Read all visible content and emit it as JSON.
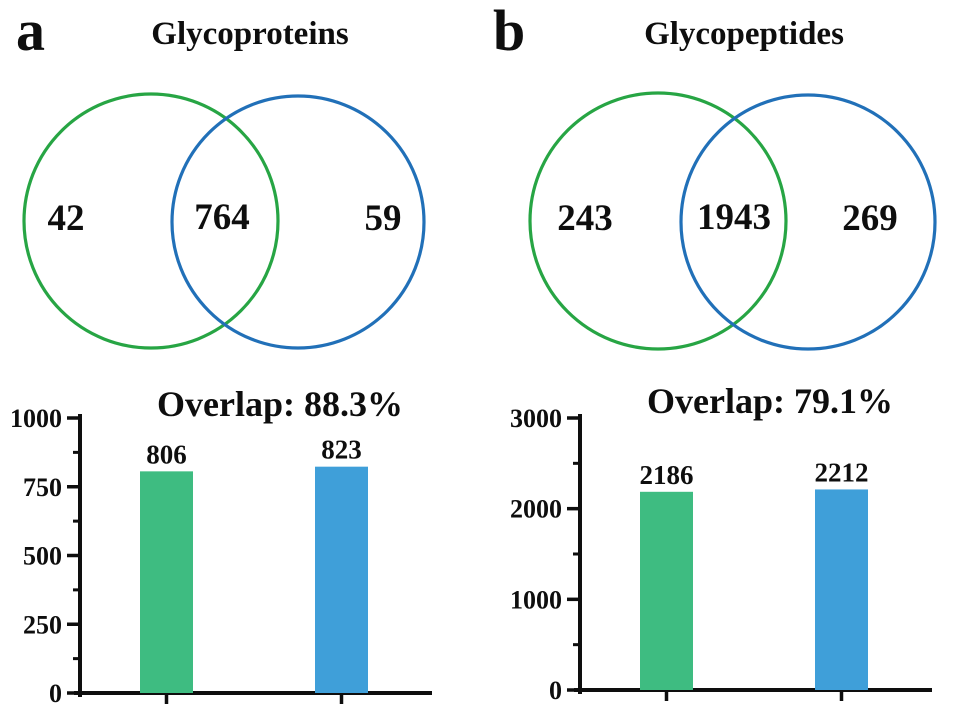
{
  "figure": {
    "background": "#ffffff",
    "text_color": "#0e0e0e"
  },
  "colors": {
    "axis": "#0e0e0e",
    "venn_left_stroke": "#27a544",
    "venn_right_stroke": "#2170b8",
    "bar_green": "#3ebc81",
    "bar_blue": "#3f9fd9"
  },
  "chart_data": [
    {
      "type": "venn+bar",
      "panel_label": "a",
      "venn_title": "Glycoproteins",
      "venn": {
        "left_only": "42",
        "overlap": "764",
        "right_only": "59",
        "left_circle_color": "#27a544",
        "right_circle_color": "#2170b8"
      },
      "bar": {
        "type": "bar",
        "title": "Overlap: 88.3%",
        "categories": [
          "green",
          "blue"
        ],
        "values": [
          806,
          823
        ],
        "value_labels": [
          "806",
          "823"
        ],
        "colors": [
          "#3ebc81",
          "#3f9fd9"
        ],
        "ylim": [
          0,
          1000
        ],
        "yticks": [
          0,
          250,
          500,
          750,
          1000
        ],
        "ytick_labels": [
          "0",
          "250",
          "500",
          "750",
          "1000"
        ],
        "minor_yticks": [
          125,
          375,
          625,
          875
        ],
        "grid": false,
        "legend": false,
        "xlabel": "",
        "ylabel": ""
      }
    },
    {
      "type": "venn+bar",
      "panel_label": "b",
      "venn_title": "Glycopeptides",
      "venn": {
        "left_only": "243",
        "overlap": "1943",
        "right_only": "269",
        "left_circle_color": "#27a544",
        "right_circle_color": "#2170b8"
      },
      "bar": {
        "type": "bar",
        "title": "Overlap: 79.1%",
        "categories": [
          "green",
          "blue"
        ],
        "values": [
          2186,
          2212
        ],
        "value_labels": [
          "2186",
          "2212"
        ],
        "colors": [
          "#3ebc81",
          "#3f9fd9"
        ],
        "ylim": [
          0,
          3000
        ],
        "yticks": [
          0,
          1000,
          2000,
          3000
        ],
        "ytick_labels": [
          "0",
          "1000",
          "2000",
          "3000"
        ],
        "minor_yticks": [
          500,
          1500,
          2500
        ],
        "grid": false,
        "legend": false,
        "xlabel": "",
        "ylabel": ""
      }
    }
  ]
}
